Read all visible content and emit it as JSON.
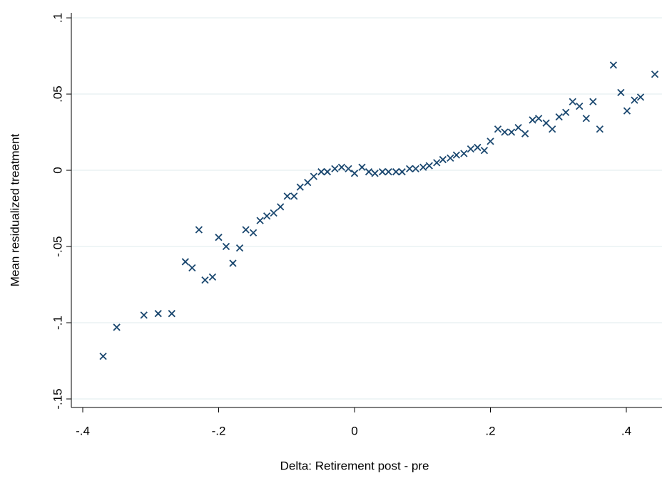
{
  "chart_data": {
    "type": "scatter",
    "x_label": "Delta: Retirement post - pre",
    "y_label": "Mean residualized treatment",
    "xlim": [
      -0.4168,
      0.4525
    ],
    "ylim": [
      -0.1556,
      0.1033
    ],
    "xticks": [
      {
        "value": -0.4,
        "label": "-.4"
      },
      {
        "value": -0.2,
        "label": "-.2"
      },
      0,
      {
        "value": 0.2,
        "label": ".2"
      },
      {
        "value": 0.4,
        "label": ".4"
      }
    ],
    "yticks": [
      {
        "value": -0.15,
        "label": "-.15"
      },
      {
        "value": -0.1,
        "label": "-.1"
      },
      {
        "value": -0.05,
        "label": "-.05"
      },
      0,
      {
        "value": 0.05,
        "label": ".05"
      },
      {
        "value": 0.1,
        "label": ".1"
      }
    ],
    "grid": true,
    "series": [
      {
        "color": "#1a476f",
        "x": [
          -0.37,
          -0.35,
          -0.31,
          -0.289,
          -0.269,
          -0.249,
          -0.239,
          -0.229,
          -0.22,
          -0.209,
          -0.2,
          -0.189,
          -0.179,
          -0.169,
          -0.16,
          -0.149,
          -0.139,
          -0.129,
          -0.119,
          -0.109,
          -0.099,
          -0.089,
          -0.08,
          -0.069,
          -0.06,
          -0.049,
          -0.04,
          -0.029,
          -0.019,
          -0.009,
          0.0,
          0.011,
          0.021,
          0.03,
          0.041,
          0.05,
          0.061,
          0.07,
          0.081,
          0.09,
          0.101,
          0.11,
          0.121,
          0.13,
          0.141,
          0.15,
          0.161,
          0.171,
          0.181,
          0.191,
          0.2,
          0.211,
          0.221,
          0.231,
          0.241,
          0.251,
          0.262,
          0.271,
          0.282,
          0.291,
          0.301,
          0.311,
          0.321,
          0.331,
          0.341,
          0.351,
          0.361,
          0.381,
          0.392,
          0.401,
          0.412,
          0.421,
          0.442
        ],
        "values": [
          -0.122,
          -0.103,
          -0.095,
          -0.094,
          -0.094,
          -0.06,
          -0.064,
          -0.039,
          -0.072,
          -0.07,
          -0.044,
          -0.05,
          -0.061,
          -0.051,
          -0.039,
          -0.041,
          -0.033,
          -0.03,
          -0.028,
          -0.024,
          -0.017,
          -0.017,
          -0.011,
          -0.008,
          -0.004,
          -0.001,
          -0.001,
          0.001,
          0.002,
          0.001,
          -0.002,
          0.002,
          -0.001,
          -0.002,
          -0.001,
          -0.001,
          -0.001,
          -0.001,
          0.001,
          0.001,
          0.002,
          0.003,
          0.005,
          0.007,
          0.008,
          0.01,
          0.011,
          0.014,
          0.015,
          0.013,
          0.019,
          0.027,
          0.025,
          0.025,
          0.028,
          0.024,
          0.033,
          0.034,
          0.031,
          0.027,
          0.035,
          0.038,
          0.045,
          0.042,
          0.034,
          0.045,
          0.027,
          0.069,
          0.051,
          0.039,
          0.046,
          0.048,
          0.063
        ]
      }
    ]
  }
}
